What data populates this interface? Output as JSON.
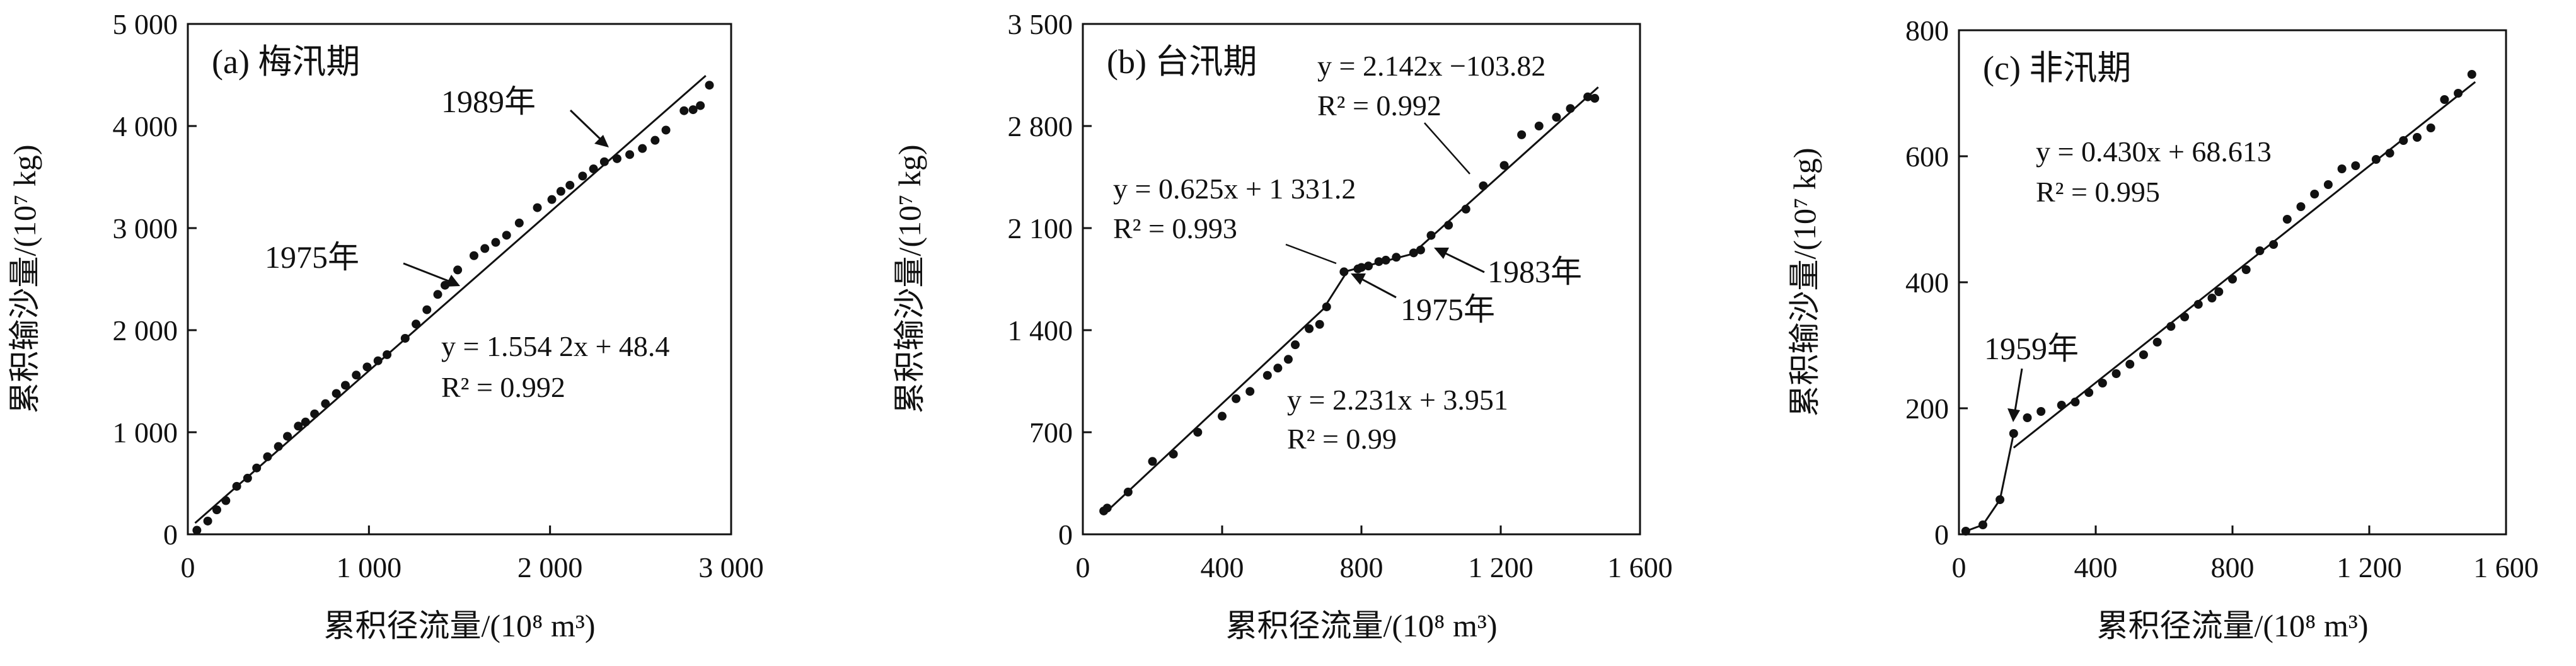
{
  "chart_data": [
    {
      "type": "scatter",
      "panel_label": "(a) 梅汛期",
      "xlabel": "累积径流量/(10⁸ m³)",
      "ylabel": "累积输沙量/(10⁷ kg)",
      "xlim": [
        0,
        3000
      ],
      "ylim": [
        0,
        5000
      ],
      "x_ticks": [
        0,
        1000,
        2000,
        3000
      ],
      "x_tick_labels": [
        "0",
        "1 000",
        "2 000",
        "3 000"
      ],
      "y_ticks": [
        0,
        1000,
        2000,
        3000,
        4000,
        5000
      ],
      "y_tick_labels": [
        "0",
        "1 000",
        "2 000",
        "3 000",
        "4 000",
        "5 000"
      ],
      "points": [
        [
          50,
          40
        ],
        [
          110,
          130
        ],
        [
          160,
          240
        ],
        [
          210,
          330
        ],
        [
          270,
          470
        ],
        [
          330,
          550
        ],
        [
          380,
          650
        ],
        [
          440,
          760
        ],
        [
          500,
          860
        ],
        [
          550,
          960
        ],
        [
          610,
          1060
        ],
        [
          650,
          1100
        ],
        [
          700,
          1180
        ],
        [
          760,
          1280
        ],
        [
          820,
          1380
        ],
        [
          870,
          1460
        ],
        [
          930,
          1560
        ],
        [
          990,
          1640
        ],
        [
          1050,
          1700
        ],
        [
          1100,
          1760
        ],
        [
          1200,
          1920
        ],
        [
          1260,
          2060
        ],
        [
          1320,
          2200
        ],
        [
          1380,
          2350
        ],
        [
          1420,
          2440
        ],
        [
          1490,
          2590
        ],
        [
          1580,
          2730
        ],
        [
          1640,
          2800
        ],
        [
          1700,
          2860
        ],
        [
          1760,
          2930
        ],
        [
          1830,
          3050
        ],
        [
          1930,
          3200
        ],
        [
          2010,
          3280
        ],
        [
          2060,
          3360
        ],
        [
          2110,
          3420
        ],
        [
          2180,
          3510
        ],
        [
          2240,
          3580
        ],
        [
          2300,
          3650
        ],
        [
          2370,
          3680
        ],
        [
          2440,
          3720
        ],
        [
          2510,
          3780
        ],
        [
          2580,
          3860
        ],
        [
          2640,
          3960
        ],
        [
          2740,
          4150
        ],
        [
          2790,
          4160
        ],
        [
          2830,
          4200
        ],
        [
          2880,
          4400
        ]
      ],
      "fits": [
        {
          "equation": "y = 1.554 2x + 48.4",
          "r2": "R² = 0.992",
          "x_range": [
            40,
            2860
          ],
          "slope": 1.5542,
          "intercept": 48.4
        }
      ],
      "annotations": [
        {
          "text": "1975年",
          "x": 1400,
          "y": 2420
        },
        {
          "text": "1989年",
          "x": 2300,
          "y": 3680
        }
      ]
    },
    {
      "type": "scatter",
      "panel_label": "(b) 台汛期",
      "xlabel": "累积径流量/(10⁸ m³)",
      "ylabel": "累积输沙量/(10⁷ kg)",
      "xlim": [
        0,
        1600
      ],
      "ylim": [
        0,
        3500
      ],
      "x_ticks": [
        0,
        400,
        800,
        1200,
        1600
      ],
      "x_tick_labels": [
        "0",
        "400",
        "800",
        "1 200",
        "1 600"
      ],
      "y_ticks": [
        0,
        700,
        1400,
        2100,
        2800,
        3500
      ],
      "y_tick_labels": [
        "0",
        "700",
        "1 400",
        "2 100",
        "2 800",
        "3 500"
      ],
      "points": [
        [
          60,
          160
        ],
        [
          70,
          180
        ],
        [
          130,
          290
        ],
        [
          200,
          500
        ],
        [
          260,
          550
        ],
        [
          330,
          700
        ],
        [
          400,
          810
        ],
        [
          440,
          930
        ],
        [
          480,
          980
        ],
        [
          530,
          1090
        ],
        [
          560,
          1140
        ],
        [
          590,
          1200
        ],
        [
          610,
          1300
        ],
        [
          650,
          1410
        ],
        [
          680,
          1440
        ],
        [
          700,
          1560
        ],
        [
          750,
          1800
        ],
        [
          790,
          1820
        ],
        [
          800,
          1830
        ],
        [
          820,
          1840
        ],
        [
          850,
          1870
        ],
        [
          870,
          1880
        ],
        [
          900,
          1900
        ],
        [
          950,
          1930
        ],
        [
          970,
          1950
        ],
        [
          1000,
          2050
        ],
        [
          1050,
          2120
        ],
        [
          1100,
          2230
        ],
        [
          1150,
          2390
        ],
        [
          1210,
          2530
        ],
        [
          1260,
          2740
        ],
        [
          1310,
          2800
        ],
        [
          1360,
          2860
        ],
        [
          1400,
          2920
        ],
        [
          1450,
          3000
        ],
        [
          1470,
          2990
        ]
      ],
      "fits": [
        {
          "equation": "y = 2.231x + 3.951",
          "r2": "R² = 0.99",
          "x_range": [
            60,
            690
          ],
          "slope": 2.231,
          "intercept": 3.951
        },
        {
          "equation": "y = 0.625x + 1 331.2",
          "r2": "R² = 0.993",
          "x_range": [
            760,
            960
          ],
          "slope": 0.625,
          "intercept": 1331.2
        },
        {
          "equation": "y = 2.142x −103.82",
          "r2": "R² = 0.992",
          "x_range": [
            960,
            1480
          ],
          "slope": 2.142,
          "intercept": -103.82
        }
      ],
      "annotations": [
        {
          "text": "1975年",
          "x": 780,
          "y": 1820
        },
        {
          "text": "1983年",
          "x": 1010,
          "y": 1960
        }
      ]
    },
    {
      "type": "scatter",
      "panel_label": "(c) 非汛期",
      "xlabel": "累积径流量/(10⁸ m³)",
      "ylabel": "累积输沙量/(10⁷ kg)",
      "xlim": [
        0,
        1600
      ],
      "ylim": [
        0,
        800
      ],
      "x_ticks": [
        0,
        400,
        800,
        1200,
        1600
      ],
      "x_tick_labels": [
        "0",
        "400",
        "800",
        "1 200",
        "1 600"
      ],
      "y_ticks": [
        0,
        200,
        400,
        600,
        800
      ],
      "y_tick_labels": [
        "0",
        "200",
        "400",
        "600",
        "800"
      ],
      "points": [
        [
          20,
          5
        ],
        [
          70,
          15
        ],
        [
          120,
          55
        ],
        [
          160,
          160
        ],
        [
          200,
          185
        ],
        [
          240,
          195
        ],
        [
          300,
          205
        ],
        [
          340,
          210
        ],
        [
          380,
          225
        ],
        [
          420,
          240
        ],
        [
          460,
          255
        ],
        [
          500,
          270
        ],
        [
          540,
          285
        ],
        [
          580,
          305
        ],
        [
          620,
          330
        ],
        [
          660,
          345
        ],
        [
          700,
          365
        ],
        [
          740,
          375
        ],
        [
          760,
          385
        ],
        [
          800,
          405
        ],
        [
          840,
          420
        ],
        [
          880,
          450
        ],
        [
          920,
          460
        ],
        [
          960,
          500
        ],
        [
          1000,
          520
        ],
        [
          1040,
          540
        ],
        [
          1080,
          555
        ],
        [
          1120,
          580
        ],
        [
          1160,
          585
        ],
        [
          1220,
          595
        ],
        [
          1260,
          605
        ],
        [
          1300,
          625
        ],
        [
          1340,
          630
        ],
        [
          1380,
          645
        ],
        [
          1420,
          690
        ],
        [
          1460,
          700
        ],
        [
          1500,
          730
        ]
      ],
      "fits": [
        {
          "equation": "y = 0.430x + 68.613",
          "r2": "R² = 0.995",
          "x_range": [
            160,
            1510
          ],
          "slope": 0.43,
          "intercept": 68.613
        }
      ],
      "annotations": [
        {
          "text": "1959年",
          "x": 160,
          "y": 160
        }
      ]
    }
  ]
}
